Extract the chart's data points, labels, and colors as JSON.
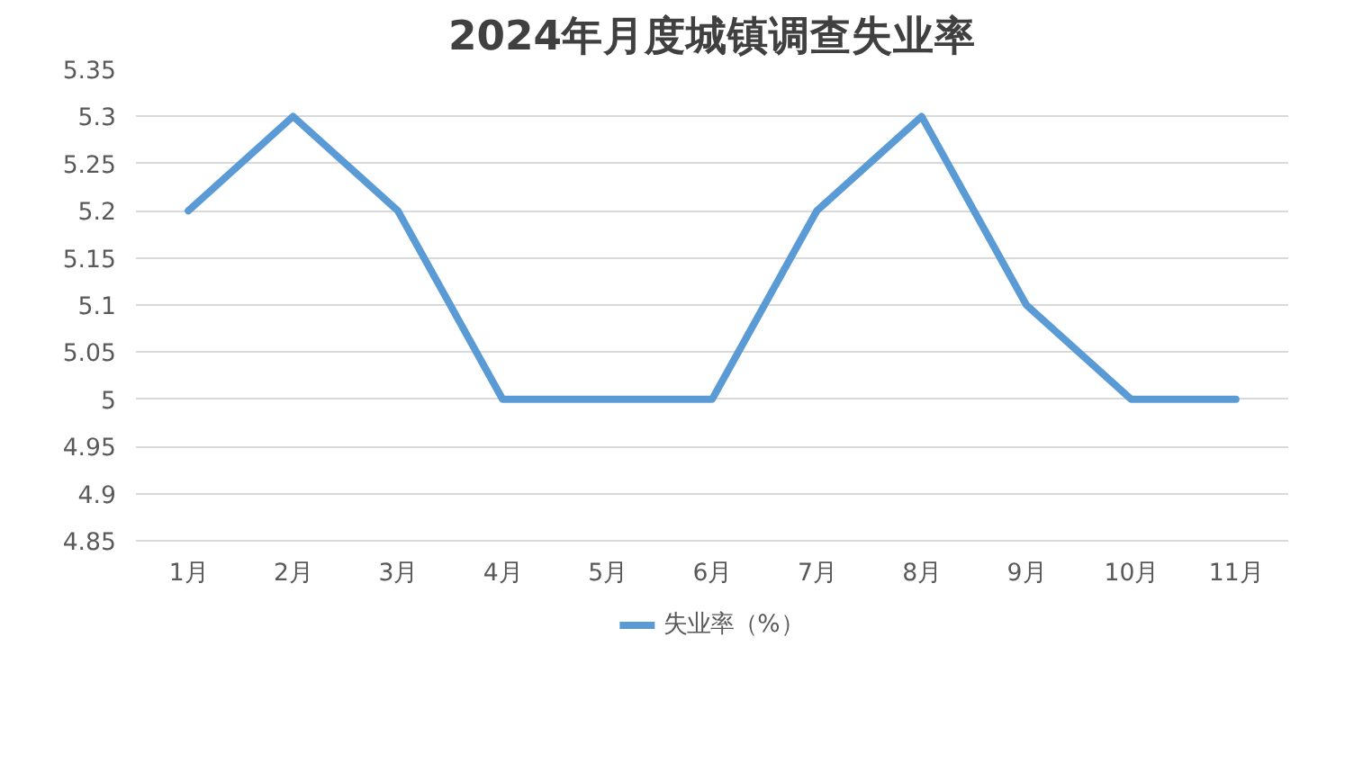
{
  "chart_data": {
    "type": "line",
    "title": "2024年月度城镇调查失业率",
    "categories": [
      "1月",
      "2月",
      "3月",
      "4月",
      "5月",
      "6月",
      "7月",
      "8月",
      "9月",
      "10月",
      "11月"
    ],
    "series": [
      {
        "name": "失业率（%）",
        "color": "#5b9bd5",
        "values": [
          5.2,
          5.3,
          5.2,
          5,
          5,
          5,
          5.2,
          5.3,
          5.1,
          5,
          5
        ]
      }
    ],
    "ylim": [
      4.85,
      5.35
    ],
    "yticks": [
      4.85,
      4.9,
      4.95,
      5,
      5.05,
      5.1,
      5.15,
      5.2,
      5.25,
      5.3,
      5.35
    ],
    "grid": "y",
    "legend": "bottom",
    "marker": "none",
    "line_style": "solid"
  }
}
